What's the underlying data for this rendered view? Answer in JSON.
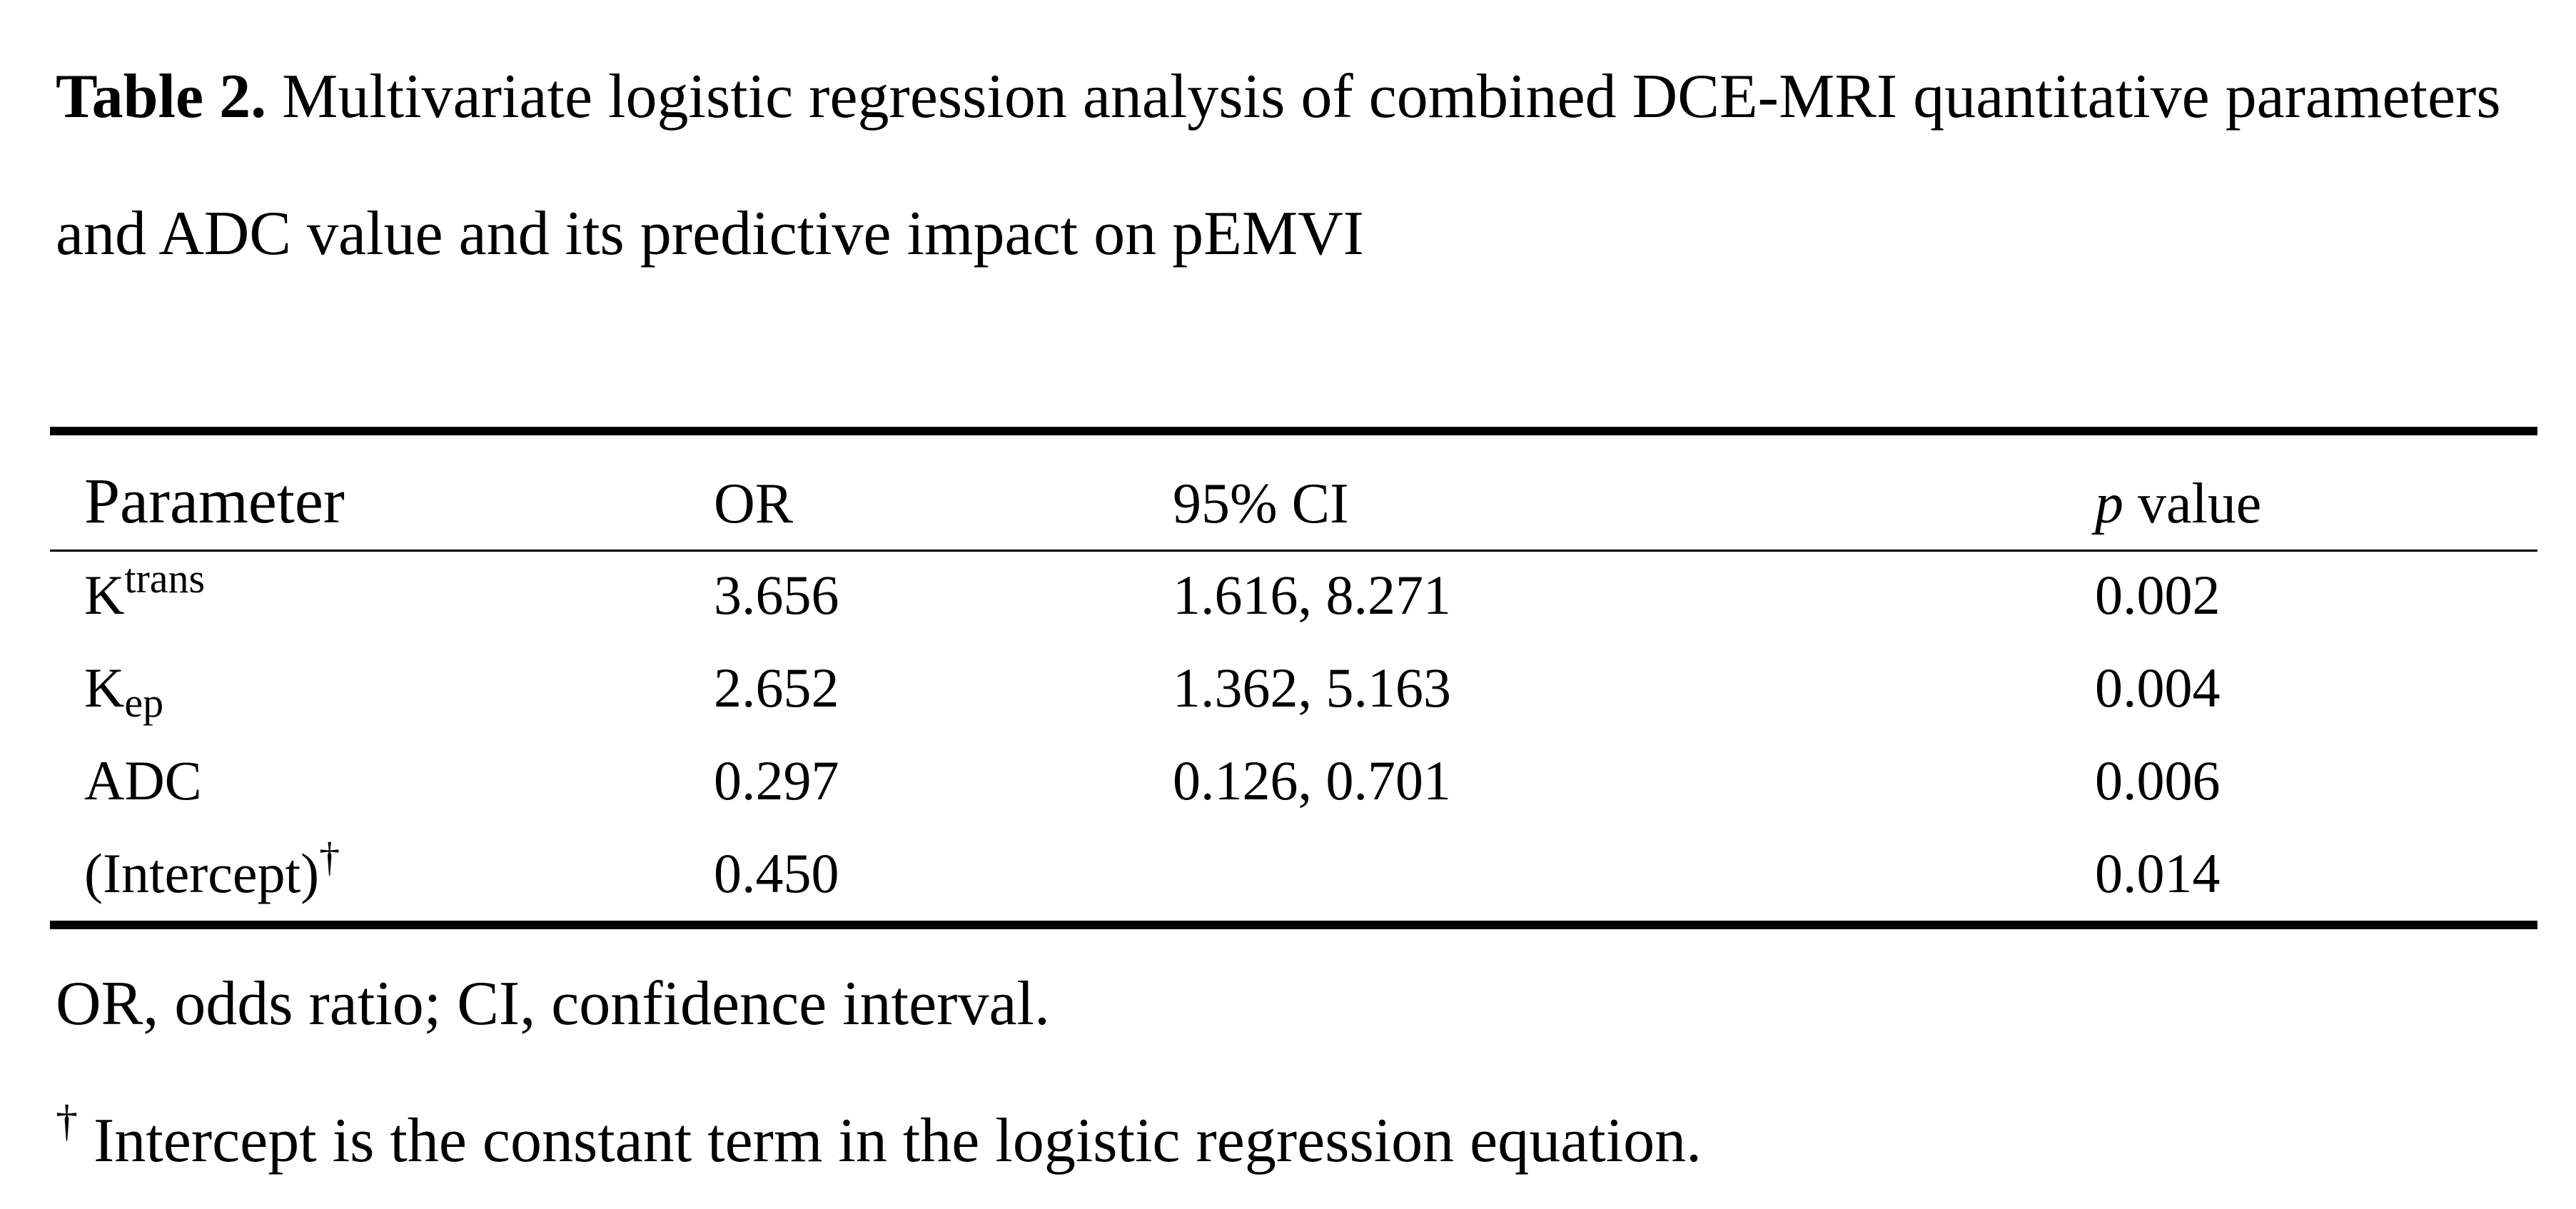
{
  "caption": {
    "label": "Table 2.",
    "text": " Multivariate logistic regression analysis of combined DCE-MRI quantitative parameters and ADC value and its predictive impact on pEMVI"
  },
  "table": {
    "headers": {
      "parameter": "Parameter",
      "or": "OR",
      "ci": "95% CI",
      "p_italic": "p",
      "p_rest": " value"
    },
    "rows": [
      {
        "param_base": "K",
        "param_sup": "trans",
        "param_sub": "",
        "or": "3.656",
        "ci": "1.616, 8.271",
        "p": "0.002"
      },
      {
        "param_base": "K",
        "param_sup": "",
        "param_sub": "ep",
        "or": "2.652",
        "ci": "1.362, 5.163",
        "p": "0.004"
      },
      {
        "param_base": "ADC",
        "param_sup": "",
        "param_sub": "",
        "or": "0.297",
        "ci": "0.126, 0.701",
        "p": "0.006"
      },
      {
        "param_base": "(Intercept)",
        "param_sup": "†",
        "param_sub": "",
        "or": "0.450",
        "ci": "",
        "p": "0.014"
      }
    ]
  },
  "footnotes": {
    "abbrev": "OR, odds ratio; CI, confidence interval.",
    "dagger_mark": "†",
    "dagger_text": " Intercept is the constant term in the logistic regression equation."
  }
}
